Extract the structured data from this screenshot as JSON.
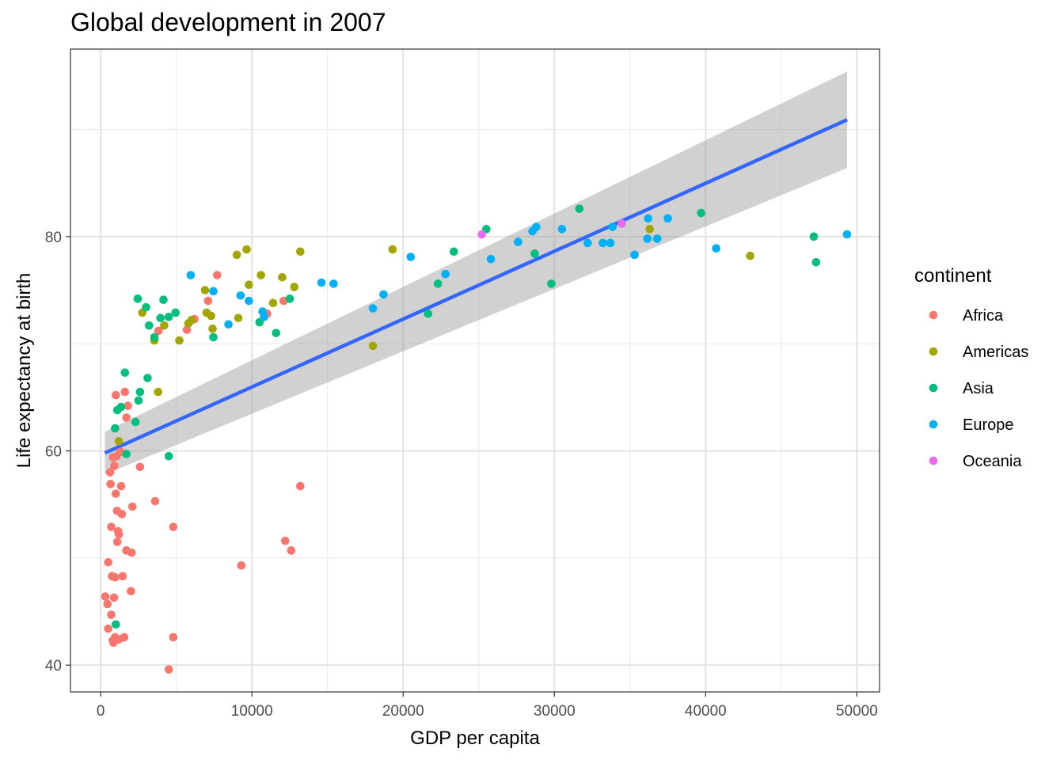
{
  "chart_data": {
    "type": "scatter",
    "title": "Global development in 2007",
    "xlabel": "GDP per capita",
    "ylabel": "Life expectancy at birth",
    "xlim": [
      -2000,
      51500
    ],
    "ylim": [
      37.5,
      97.5
    ],
    "x_ticks": [
      0,
      10000,
      20000,
      30000,
      40000,
      50000
    ],
    "x_tick_labels": [
      "0",
      "10000",
      "20000",
      "30000",
      "40000",
      "50000"
    ],
    "y_ticks": [
      40,
      60,
      80
    ],
    "y_tick_labels": [
      "40",
      "60",
      "80"
    ],
    "grid": true,
    "legend": {
      "title": "continent",
      "position": "right",
      "entries": [
        {
          "label": "Africa",
          "color": "#F8766D"
        },
        {
          "label": "Americas",
          "color": "#A3A500"
        },
        {
          "label": "Asia",
          "color": "#00BF7D"
        },
        {
          "label": "Europe",
          "color": "#00B0F6"
        },
        {
          "label": "Oceania",
          "color": "#E76BF3"
        }
      ]
    },
    "trend": {
      "method": "linear",
      "color": "#3366FF",
      "ribbon_color": "#999999",
      "line": [
        [
          277,
          59.8
        ],
        [
          49357,
          90.9
        ]
      ],
      "ribbon_upper": [
        [
          277,
          61.8
        ],
        [
          49357,
          95.4
        ]
      ],
      "ribbon_lower": [
        [
          277,
          57.8
        ],
        [
          49357,
          86.4
        ]
      ]
    },
    "series": [
      {
        "name": "Africa",
        "color": "#F8766D",
        "points": [
          [
            300,
            46.4
          ],
          [
            450,
            45.7
          ],
          [
            500,
            49.6
          ],
          [
            500,
            43.4
          ],
          [
            620,
            58.0
          ],
          [
            650,
            56.9
          ],
          [
            700,
            52.9
          ],
          [
            700,
            44.7
          ],
          [
            750,
            48.3
          ],
          [
            800,
            42.3
          ],
          [
            820,
            59.4
          ],
          [
            850,
            42.1
          ],
          [
            880,
            46.3
          ],
          [
            900,
            58.6
          ],
          [
            950,
            48.2
          ],
          [
            950,
            42.6
          ],
          [
            1000,
            56.0
          ],
          [
            1000,
            65.2
          ],
          [
            1050,
            59.5
          ],
          [
            1080,
            54.4
          ],
          [
            1100,
            51.5
          ],
          [
            1150,
            52.5
          ],
          [
            1200,
            52.2
          ],
          [
            1200,
            42.4
          ],
          [
            1300,
            59.9
          ],
          [
            1350,
            56.7
          ],
          [
            1400,
            54.1
          ],
          [
            1450,
            48.3
          ],
          [
            1550,
            42.6
          ],
          [
            1600,
            65.5
          ],
          [
            1700,
            50.7
          ],
          [
            1700,
            63.1
          ],
          [
            1800,
            64.2
          ],
          [
            2000,
            46.9
          ],
          [
            2050,
            50.5
          ],
          [
            2100,
            54.8
          ],
          [
            2600,
            58.5
          ],
          [
            3600,
            55.3
          ],
          [
            3820,
            71.2
          ],
          [
            4500,
            39.6
          ],
          [
            4800,
            52.9
          ],
          [
            4800,
            42.6
          ],
          [
            5700,
            71.3
          ],
          [
            6200,
            72.3
          ],
          [
            7100,
            74.0
          ],
          [
            7700,
            76.4
          ],
          [
            9300,
            49.3
          ],
          [
            11000,
            72.8
          ],
          [
            12100,
            74.0
          ],
          [
            12200,
            51.6
          ],
          [
            12600,
            50.7
          ],
          [
            13200,
            56.7
          ]
        ]
      },
      {
        "name": "Americas",
        "color": "#A3A500",
        "points": [
          [
            1200,
            60.9
          ],
          [
            2750,
            72.9
          ],
          [
            3550,
            70.3
          ],
          [
            3800,
            65.5
          ],
          [
            4200,
            71.7
          ],
          [
            5200,
            70.3
          ],
          [
            5800,
            71.9
          ],
          [
            6000,
            72.2
          ],
          [
            6900,
            75.0
          ],
          [
            7000,
            72.9
          ],
          [
            7300,
            72.6
          ],
          [
            7400,
            71.4
          ],
          [
            9000,
            78.3
          ],
          [
            9100,
            72.4
          ],
          [
            9650,
            78.8
          ],
          [
            9800,
            75.5
          ],
          [
            10600,
            76.4
          ],
          [
            11400,
            73.8
          ],
          [
            12000,
            76.2
          ],
          [
            12800,
            75.3
          ],
          [
            13200,
            78.6
          ],
          [
            18000,
            69.8
          ],
          [
            19300,
            78.8
          ],
          [
            36300,
            80.7
          ],
          [
            42950,
            78.2
          ]
        ]
      },
      {
        "name": "Asia",
        "color": "#00BF7D",
        "points": [
          [
            950,
            62.1
          ],
          [
            1000,
            43.8
          ],
          [
            1100,
            63.8
          ],
          [
            1350,
            64.1
          ],
          [
            1600,
            67.3
          ],
          [
            1700,
            59.7
          ],
          [
            2300,
            62.7
          ],
          [
            2450,
            74.2
          ],
          [
            2500,
            64.7
          ],
          [
            2600,
            65.5
          ],
          [
            3000,
            73.4
          ],
          [
            3100,
            66.8
          ],
          [
            3200,
            71.7
          ],
          [
            3550,
            70.6
          ],
          [
            3950,
            72.4
          ],
          [
            4150,
            74.1
          ],
          [
            4500,
            59.5
          ],
          [
            4500,
            72.5
          ],
          [
            4950,
            72.9
          ],
          [
            7450,
            70.6
          ],
          [
            10500,
            72.0
          ],
          [
            11600,
            71.0
          ],
          [
            12500,
            74.2
          ],
          [
            21650,
            72.8
          ],
          [
            22300,
            75.6
          ],
          [
            23350,
            78.6
          ],
          [
            25500,
            80.7
          ],
          [
            28700,
            78.4
          ],
          [
            29800,
            75.6
          ],
          [
            31650,
            82.6
          ],
          [
            39700,
            82.2
          ],
          [
            47150,
            80.0
          ],
          [
            47300,
            77.6
          ]
        ]
      },
      {
        "name": "Europe",
        "color": "#00B0F6",
        "points": [
          [
            5950,
            76.4
          ],
          [
            7450,
            74.9
          ],
          [
            8450,
            71.8
          ],
          [
            9250,
            74.5
          ],
          [
            9800,
            74.0
          ],
          [
            10700,
            73.0
          ],
          [
            10800,
            72.5
          ],
          [
            14600,
            75.7
          ],
          [
            15400,
            75.6
          ],
          [
            18000,
            73.3
          ],
          [
            18700,
            74.6
          ],
          [
            20500,
            78.1
          ],
          [
            22800,
            76.5
          ],
          [
            25800,
            77.9
          ],
          [
            27600,
            79.5
          ],
          [
            28550,
            80.5
          ],
          [
            28800,
            80.9
          ],
          [
            30500,
            80.7
          ],
          [
            32200,
            79.4
          ],
          [
            33200,
            79.4
          ],
          [
            33700,
            79.4
          ],
          [
            33850,
            80.9
          ],
          [
            35300,
            78.3
          ],
          [
            36150,
            79.8
          ],
          [
            36200,
            81.7
          ],
          [
            36800,
            79.8
          ],
          [
            37500,
            81.7
          ],
          [
            40700,
            78.9
          ],
          [
            49350,
            80.2
          ]
        ]
      },
      {
        "name": "Oceania",
        "color": "#E76BF3",
        "points": [
          [
            25200,
            80.2
          ],
          [
            34450,
            81.2
          ]
        ]
      }
    ]
  }
}
